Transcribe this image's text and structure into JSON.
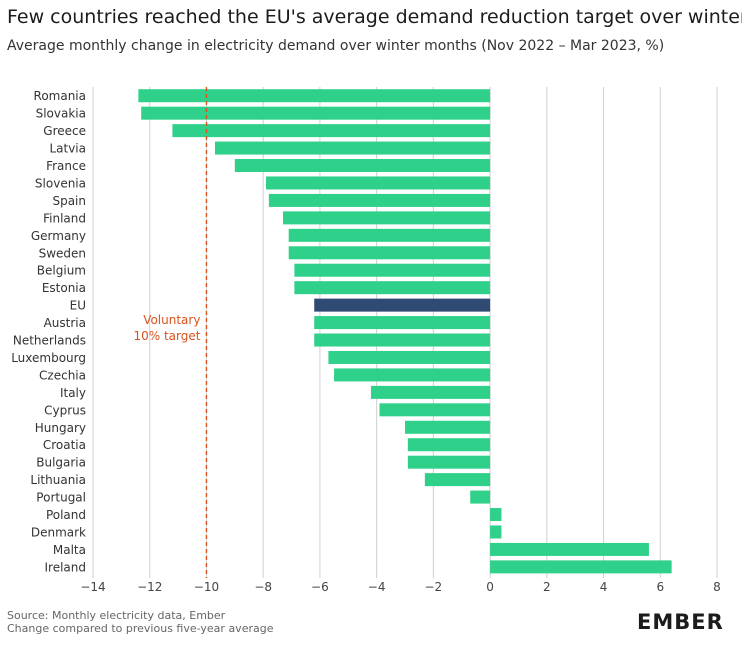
{
  "title": "Few countries reached the EU's average demand reduction target over winter",
  "subtitle": "Average monthly change in electricity demand over winter months (Nov 2022 – Mar 2023, %)",
  "footer": {
    "line1": "Source: Monthly electricity data, Ember",
    "line2": "Change compared to previous five-year average"
  },
  "logo": "EMBER",
  "colors": {
    "country_bar": "#2ed08a",
    "eu_bar": "#2f4a73",
    "target_line": "#d9531e",
    "grid": "#d0d0d0"
  },
  "chart_data": {
    "type": "bar",
    "orientation": "horizontal",
    "categories": [
      "Romania",
      "Slovakia",
      "Greece",
      "Latvia",
      "France",
      "Slovenia",
      "Spain",
      "Finland",
      "Germany",
      "Sweden",
      "Belgium",
      "Estonia",
      "EU",
      "Austria",
      "Netherlands",
      "Luxembourg",
      "Czechia",
      "Italy",
      "Cyprus",
      "Hungary",
      "Croatia",
      "Bulgaria",
      "Lithuania",
      "Portugal",
      "Poland",
      "Denmark",
      "Malta",
      "Ireland"
    ],
    "values": [
      -12.4,
      -12.3,
      -11.2,
      -9.7,
      -9.0,
      -7.9,
      -7.8,
      -7.3,
      -7.1,
      -7.1,
      -6.9,
      -6.9,
      -6.2,
      -6.2,
      -6.2,
      -5.7,
      -5.5,
      -4.2,
      -3.9,
      -3.0,
      -2.9,
      -2.9,
      -2.3,
      -0.7,
      0.4,
      0.4,
      5.6,
      6.4
    ],
    "highlight": "EU",
    "xlim": [
      -14,
      8
    ],
    "xticks": [
      "−14",
      "−12",
      "−10",
      "−8",
      "−6",
      "−4",
      "−2",
      "0",
      "2",
      "4",
      "6",
      "8"
    ],
    "target_line": {
      "value": -10,
      "label_line1": "Voluntary",
      "label_line2": "10% target"
    },
    "grid": true
  }
}
